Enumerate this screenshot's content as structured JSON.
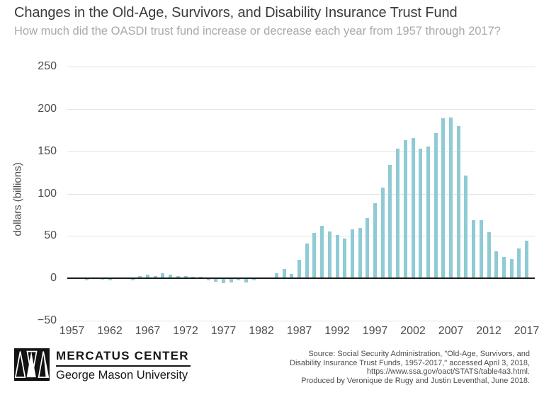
{
  "header": {
    "title": "Changes in the Old-Age, Survivors, and Disability Insurance Trust Fund",
    "subtitle": "How much did the OASDI trust fund increase or decrease each year from 1957 through 2017?"
  },
  "chart_data": {
    "type": "bar",
    "title": "Changes in the Old-Age, Survivors, and Disability Insurance Trust Fund",
    "subtitle": "How much did the OASDI trust fund increase or decrease each year from 1957 through 2017?",
    "xlabel": "",
    "ylabel": "dollars (billions)",
    "ylim": [
      -50,
      250
    ],
    "grid": true,
    "legend": "none",
    "bar_color": "#8FCBD4",
    "zero_line_color": "#1b1b1b",
    "gridline_color": "#e3e3e3",
    "x": [
      1957,
      1958,
      1959,
      1960,
      1961,
      1962,
      1963,
      1964,
      1965,
      1966,
      1967,
      1968,
      1969,
      1970,
      1971,
      1972,
      1973,
      1974,
      1975,
      1976,
      1977,
      1978,
      1979,
      1980,
      1981,
      1982,
      1983,
      1984,
      1985,
      1986,
      1987,
      1988,
      1989,
      1990,
      1991,
      1992,
      1993,
      1994,
      1995,
      1996,
      1997,
      1998,
      1999,
      2000,
      2001,
      2002,
      2003,
      2004,
      2005,
      2006,
      2007,
      2008,
      2009,
      2010,
      2011,
      2012,
      2013,
      2014,
      2015,
      2016,
      2017
    ],
    "values": [
      0.2,
      0.2,
      -1.3,
      0.7,
      -0.5,
      -1.5,
      0.0,
      0.5,
      -1.3,
      2.5,
      3.9,
      2.5,
      5.5,
      3.9,
      2.4,
      2.3,
      1.6,
      1.5,
      -1.5,
      -3.2,
      -5.3,
      -4.1,
      -1.5,
      -3.8,
      -1.9,
      0.2,
      0.1,
      6.2,
      11.1,
      4.7,
      21.9,
      41.0,
      53.2,
      62.3,
      55.5,
      50.7,
      46.8,
      58.1,
      59.7,
      70.9,
      88.6,
      107.0,
      133.6,
      153.3,
      163.1,
      165.5,
      152.8,
      156.0,
      171.9,
      189.5,
      190.4,
      180.2,
      121.7,
      68.7,
      68.9,
      54.4,
      32.1,
      25.1,
      23.0,
      35.2,
      44.1
    ],
    "xtick_labels": [
      "1957",
      "1962",
      "1967",
      "1972",
      "1977",
      "1982",
      "1987",
      "1992",
      "1997",
      "2002",
      "2007",
      "2012",
      "2017"
    ],
    "ytick_values": [
      250,
      200,
      150,
      100,
      50,
      0,
      -50
    ],
    "ytick_labels": [
      "250",
      "200",
      "150",
      "100",
      "50",
      "0",
      "−50"
    ]
  },
  "footer": {
    "logo_title": "MERCATUS CENTER",
    "logo_subtitle": "George Mason University",
    "source_lines": [
      "Source: Social Security Administration, \"Old-Age, Survivors, and",
      "Disability Insurance Trust Funds, 1957-2017,\" accessed April 3, 2018,",
      "https://www.ssa.gov/oact/STATS/table4a3.html.",
      "Produced by Veronique de Rugy and Justin Leventhal, June 2018."
    ]
  },
  "colors": {
    "title_text": "#3a3a3a",
    "subtitle_text": "#a9a9a9",
    "tick_text": "#4d4d4d",
    "bar": "#8FCBD4"
  }
}
